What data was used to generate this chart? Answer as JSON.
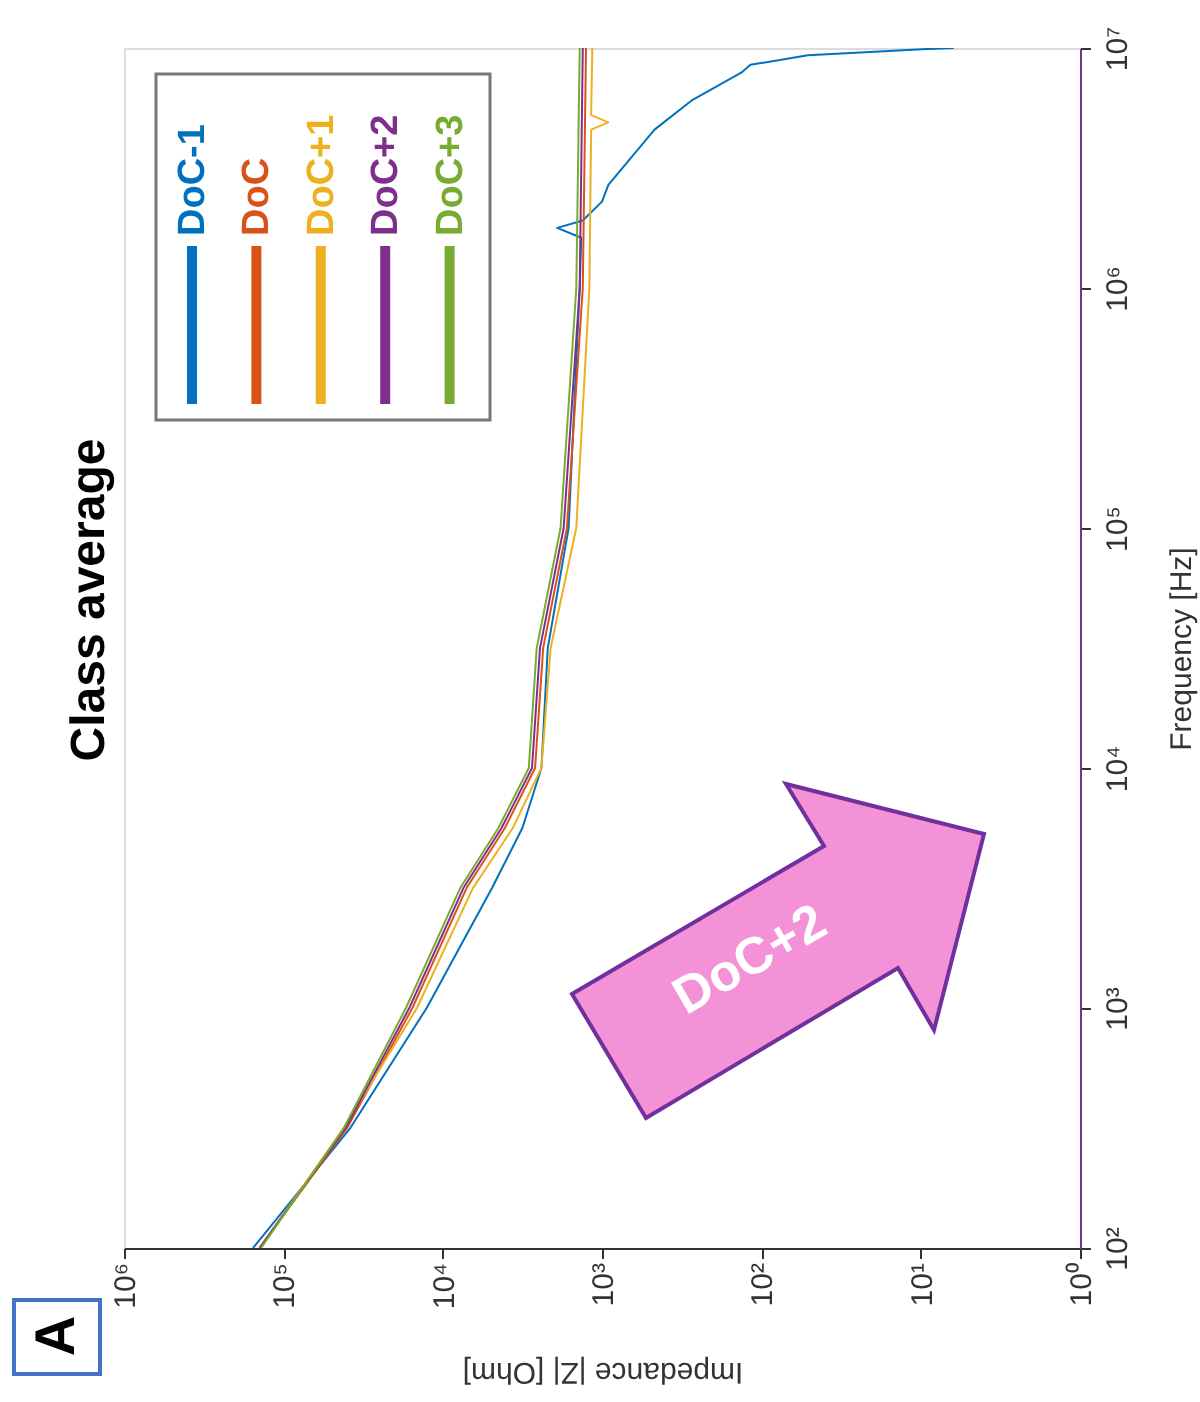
{
  "chart_data": {
    "type": "line",
    "title": "Class average",
    "xlabel": "Impedance |Z| [Ohm]",
    "ylabel": "Frequency [Hz]",
    "log": "xy",
    "grid": false,
    "legend": "top left",
    "xlim": [
      1000000,
      1
    ],
    "ylim": [
      100,
      10000000
    ],
    "xticks": [
      {
        "value": 1000000,
        "label": "10⁶"
      },
      {
        "value": 100000,
        "label": "10⁵"
      },
      {
        "value": 10000,
        "label": "10⁴"
      },
      {
        "value": 1000,
        "label": "10³"
      },
      {
        "value": 100,
        "label": "10²"
      },
      {
        "value": 10,
        "label": "10¹"
      },
      {
        "value": 1,
        "label": "10⁰"
      }
    ],
    "yticks": [
      {
        "value": 100,
        "label": "10²"
      },
      {
        "value": 1000,
        "label": "10³"
      },
      {
        "value": 10000,
        "label": "10⁴"
      },
      {
        "value": 100000,
        "label": "10⁵"
      },
      {
        "value": 1000000,
        "label": "10⁶"
      },
      {
        "value": 10000000,
        "label": "10⁷"
      }
    ],
    "annotations": [
      "A",
      "DoC+2"
    ],
    "series": [
      {
        "name": "DoC-1",
        "color": "#0072bd",
        "x": [
          155000,
          38000,
          12600,
          4900,
          3160,
          2400,
          2190,
          1620,
          1380,
          1350,
          1910,
          1320,
          1000,
          912,
          468,
          275,
          132,
          117,
          51,
          9.8,
          6.2
        ],
        "values": [
          100,
          316,
          1000,
          3160,
          5620,
          10000,
          31600,
          100000,
          1000000,
          1620000,
          1780000,
          1910000,
          2290000,
          2690000,
          4570000,
          6030000,
          7940000,
          8510000,
          9330000,
          9890000,
          10000000
        ]
      },
      {
        "name": "DoC",
        "color": "#d95319",
        "x": [
          141000,
          39800,
          15500,
          7080,
          4070,
          2630,
          2340,
          1660,
          1320,
          1260
        ],
        "values": [
          100,
          316,
          1000,
          3160,
          5620,
          10000,
          31600,
          100000,
          1000000,
          10000000
        ]
      },
      {
        "name": "DoC+1",
        "color": "#edb120",
        "x": [
          141000,
          41700,
          14500,
          6460,
          3630,
          2400,
          2100,
          1450,
          1200,
          1170,
          912,
          1170,
          1150
        ],
        "values": [
          100,
          316,
          1000,
          3160,
          5620,
          10000,
          31600,
          100000,
          1000000,
          4570000,
          4900000,
          5250000,
          10000000
        ]
      },
      {
        "name": "DoC+2",
        "color": "#7e2f8e",
        "x": [
          141000,
          40700,
          16200,
          7410,
          4270,
          2750,
          2450,
          1740,
          1380,
          1320
        ],
        "values": [
          100,
          316,
          1000,
          3160,
          5620,
          10000,
          31600,
          100000,
          1000000,
          10000000
        ]
      },
      {
        "name": "DoC+3",
        "color": "#77ac30",
        "x": [
          138000,
          41700,
          17000,
          7760,
          4470,
          2880,
          2570,
          1820,
          1450,
          1380
        ],
        "values": [
          100,
          316,
          1000,
          3160,
          5620,
          10000,
          31600,
          100000,
          1000000,
          10000000
        ]
      }
    ]
  }
}
